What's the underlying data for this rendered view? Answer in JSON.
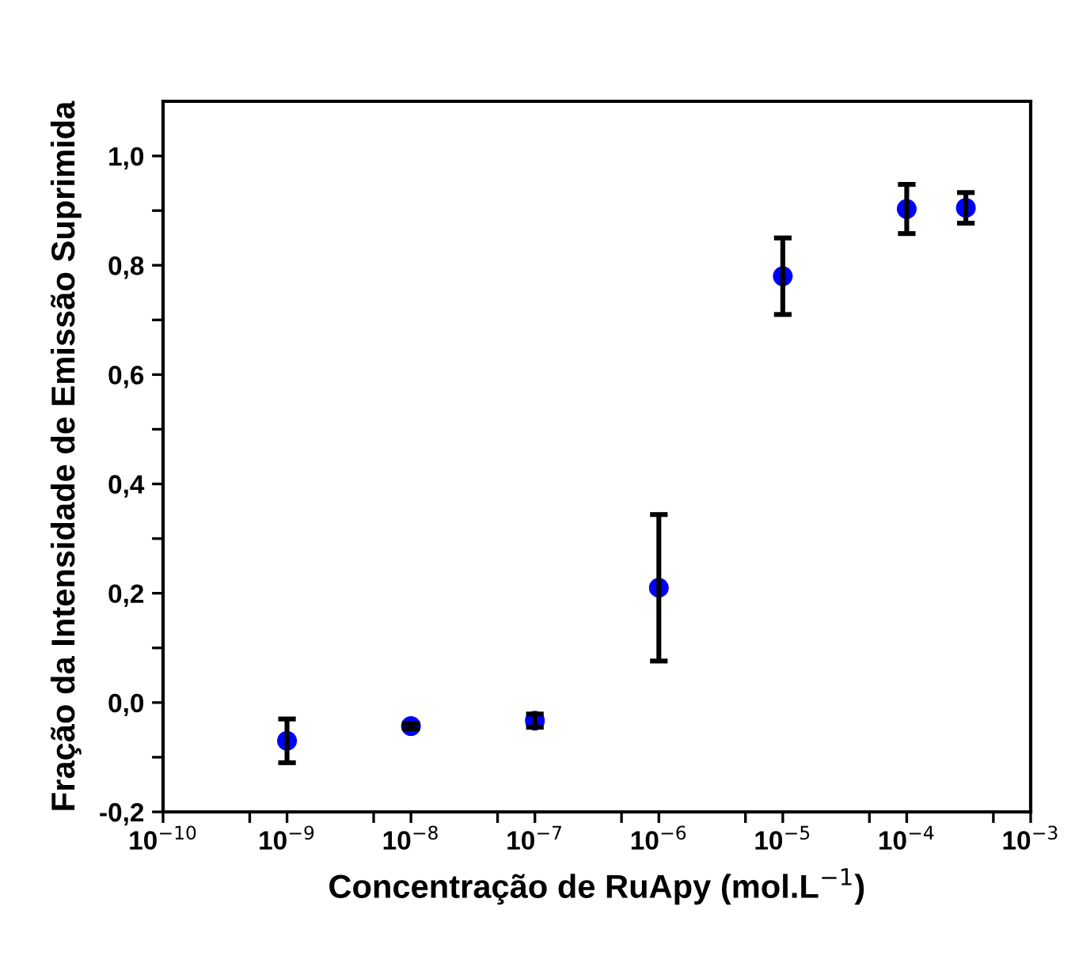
{
  "chart_data": {
    "type": "scatter",
    "xlabel": "Concentração de RuApy (mol.L$^{−1}$)",
    "ylabel": "Fração da Intensidade de Emissão Suprimida",
    "log": "x",
    "marker": "circle",
    "grid": false,
    "x": [
      1e-09,
      1e-08,
      1e-07,
      1e-06,
      1e-05,
      0.0001,
      0.0003
    ],
    "series": [
      {
        "color": "#0000ff",
        "values": [
          -0.07,
          -0.043,
          -0.033,
          0.21,
          0.78,
          0.903,
          0.905
        ],
        "errors": [
          0.04,
          0.005,
          0.012,
          0.134,
          0.07,
          0.045,
          0.028
        ]
      }
    ],
    "xlim": [
      1e-10,
      0.001
    ],
    "xticks": [
      {
        "value": 1e-10,
        "label": "10$^{−10}$"
      },
      {
        "value": 5e-10,
        "label": null
      },
      {
        "value": 1e-09,
        "label": "10$^{−9}$"
      },
      {
        "value": 5e-09,
        "label": null
      },
      {
        "value": 1e-08,
        "label": "10$^{−8}$"
      },
      {
        "value": 5e-08,
        "label": null
      },
      {
        "value": 1e-07,
        "label": "10$^{−7}$"
      },
      {
        "value": 5e-07,
        "label": null
      },
      {
        "value": 1e-06,
        "label": "10$^{−6}$"
      },
      {
        "value": 5e-06,
        "label": null
      },
      {
        "value": 1e-05,
        "label": "10$^{−5}$"
      },
      {
        "value": 5e-05,
        "label": null
      },
      {
        "value": 0.0001,
        "label": "10$^{−4}$"
      },
      {
        "value": 0.0005,
        "label": null
      },
      {
        "value": 0.001,
        "label": "10$^{−3}$"
      }
    ],
    "ylim": [
      -0.2,
      1.1
    ],
    "yticks": [
      {
        "value": -0.2,
        "label": "-0,2"
      },
      {
        "value": -0.1,
        "label": null
      },
      {
        "value": 0.0,
        "label": "0,0"
      },
      {
        "value": 0.1,
        "label": null
      },
      {
        "value": 0.2,
        "label": "0,2"
      },
      {
        "value": 0.3,
        "label": null
      },
      {
        "value": 0.4,
        "label": "0,4"
      },
      {
        "value": 0.5,
        "label": null
      },
      {
        "value": 0.6,
        "label": "0,6"
      },
      {
        "value": 0.7,
        "label": null
      },
      {
        "value": 0.8,
        "label": "0,8"
      },
      {
        "value": 0.9,
        "label": null
      },
      {
        "value": 1.0,
        "label": "1,0"
      }
    ]
  }
}
